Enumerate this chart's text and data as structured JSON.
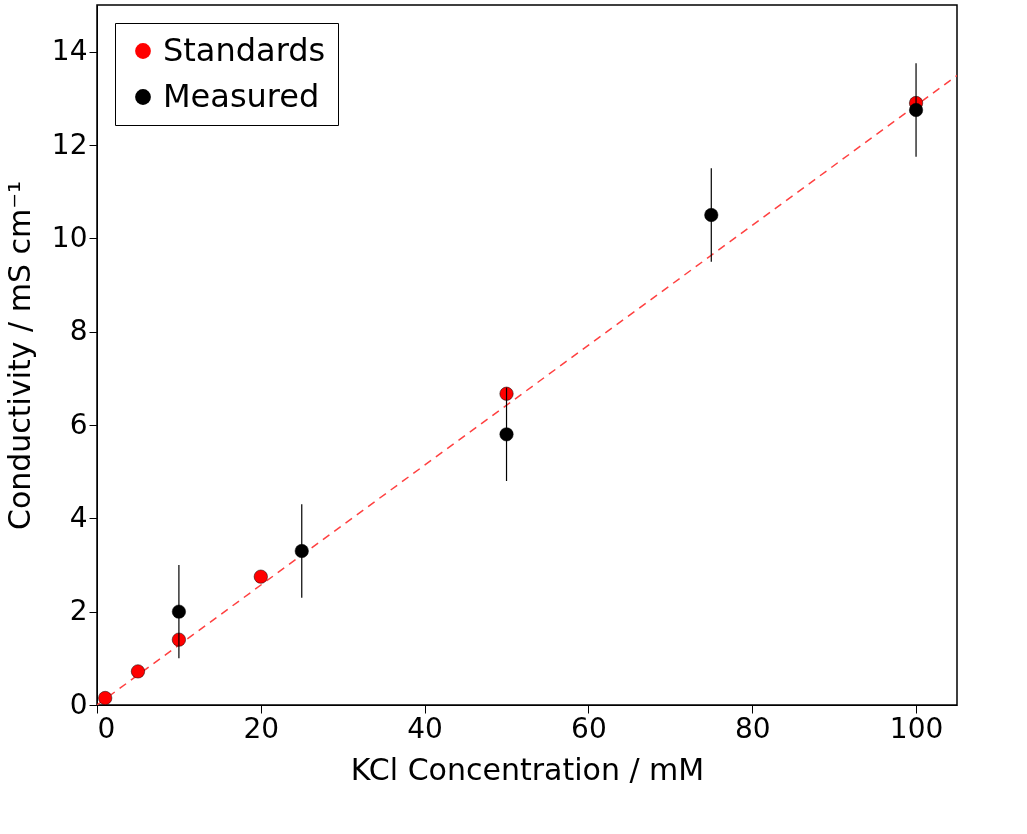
{
  "chart_data": {
    "type": "scatter",
    "xlabel": "KCl Concentration / mM",
    "ylabel": "Conductivity / mS cm⁻¹",
    "xlim": [
      0,
      105
    ],
    "ylim": [
      0,
      15
    ],
    "xticks": [
      0,
      20,
      40,
      60,
      80,
      100
    ],
    "yticks": [
      0,
      2,
      4,
      6,
      8,
      10,
      12,
      14
    ],
    "grid": false,
    "legend": "top left",
    "series": [
      {
        "type": "line",
        "line_style": "dashed",
        "marker": "none",
        "color": "#ff4040",
        "x": [
          0,
          105
        ],
        "values": [
          0,
          13.49
        ]
      },
      {
        "name": "Standards",
        "marker": "circle",
        "color": "#ff0000",
        "x": [
          1,
          5,
          10,
          20,
          50,
          100
        ],
        "values": [
          0.15,
          0.72,
          1.4,
          2.75,
          6.67,
          12.9
        ]
      },
      {
        "name": "Measured",
        "marker": "circle",
        "color": "#000000",
        "x": [
          10,
          25,
          50,
          75,
          100
        ],
        "values": [
          2.0,
          3.3,
          5.8,
          10.5,
          12.75
        ],
        "errors": [
          1,
          1,
          1,
          1,
          1
        ]
      }
    ]
  }
}
